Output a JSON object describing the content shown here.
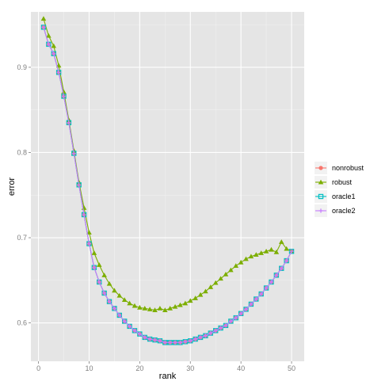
{
  "chart_data": {
    "type": "line",
    "xlabel": "rank",
    "ylabel": "error",
    "xlim": [
      -1.5,
      52.5
    ],
    "ylim": [
      0.555,
      0.965
    ],
    "x_ticks": [
      0,
      10,
      20,
      30,
      40,
      50
    ],
    "y_ticks": [
      0.6,
      0.7,
      0.8,
      0.9
    ],
    "y_tick_labels": [
      "0.6",
      "0.7",
      "0.8",
      "0.9"
    ],
    "grid": true,
    "legend_position": "right",
    "x": [
      1,
      2,
      3,
      4,
      5,
      6,
      7,
      8,
      9,
      10,
      11,
      12,
      13,
      14,
      15,
      16,
      17,
      18,
      19,
      20,
      21,
      22,
      23,
      24,
      25,
      26,
      27,
      28,
      29,
      30,
      31,
      32,
      33,
      34,
      35,
      36,
      37,
      38,
      39,
      40,
      41,
      42,
      43,
      44,
      45,
      46,
      47,
      48,
      49,
      50
    ],
    "series": [
      {
        "name": "nonrobust",
        "color": "#F8766D",
        "marker": "circle",
        "values": [
          0.947,
          0.927,
          0.916,
          0.894,
          0.866,
          0.835,
          0.799,
          0.762,
          0.727,
          0.693,
          0.665,
          0.648,
          0.635,
          0.625,
          0.617,
          0.609,
          0.602,
          0.596,
          0.591,
          0.587,
          0.583,
          0.581,
          0.58,
          0.579,
          0.577,
          0.577,
          0.577,
          0.577,
          0.578,
          0.579,
          0.581,
          0.583,
          0.585,
          0.588,
          0.591,
          0.594,
          0.597,
          0.602,
          0.606,
          0.611,
          0.616,
          0.622,
          0.628,
          0.634,
          0.641,
          0.648,
          0.656,
          0.664,
          0.673,
          0.684
        ]
      },
      {
        "name": "robust",
        "color": "#7CAE00",
        "marker": "triangle",
        "values": [
          0.957,
          0.937,
          0.925,
          0.902,
          0.871,
          0.838,
          0.802,
          0.765,
          0.735,
          0.706,
          0.682,
          0.668,
          0.656,
          0.646,
          0.638,
          0.632,
          0.627,
          0.623,
          0.62,
          0.618,
          0.617,
          0.616,
          0.615,
          0.617,
          0.615,
          0.617,
          0.619,
          0.621,
          0.623,
          0.626,
          0.629,
          0.633,
          0.637,
          0.642,
          0.647,
          0.652,
          0.657,
          0.662,
          0.667,
          0.671,
          0.675,
          0.678,
          0.68,
          0.682,
          0.684,
          0.686,
          0.683,
          0.695,
          0.687,
          0.684
        ]
      },
      {
        "name": "oracle1",
        "color": "#00BFC4",
        "marker": "square",
        "values": [
          0.947,
          0.927,
          0.916,
          0.894,
          0.866,
          0.835,
          0.799,
          0.762,
          0.727,
          0.693,
          0.665,
          0.648,
          0.635,
          0.625,
          0.617,
          0.609,
          0.602,
          0.596,
          0.591,
          0.587,
          0.583,
          0.581,
          0.58,
          0.579,
          0.577,
          0.577,
          0.577,
          0.577,
          0.578,
          0.579,
          0.581,
          0.583,
          0.585,
          0.588,
          0.591,
          0.594,
          0.597,
          0.602,
          0.606,
          0.611,
          0.616,
          0.622,
          0.628,
          0.634,
          0.641,
          0.648,
          0.656,
          0.664,
          0.673,
          0.684
        ]
      },
      {
        "name": "oracle2",
        "color": "#C77CFF",
        "marker": "cross",
        "values": [
          0.947,
          0.927,
          0.916,
          0.894,
          0.866,
          0.835,
          0.799,
          0.762,
          0.727,
          0.693,
          0.665,
          0.648,
          0.635,
          0.625,
          0.617,
          0.609,
          0.602,
          0.596,
          0.591,
          0.587,
          0.583,
          0.581,
          0.58,
          0.579,
          0.577,
          0.577,
          0.577,
          0.577,
          0.578,
          0.579,
          0.581,
          0.583,
          0.585,
          0.588,
          0.591,
          0.594,
          0.597,
          0.602,
          0.606,
          0.611,
          0.616,
          0.622,
          0.628,
          0.634,
          0.641,
          0.648,
          0.656,
          0.664,
          0.673,
          0.684
        ]
      }
    ]
  }
}
